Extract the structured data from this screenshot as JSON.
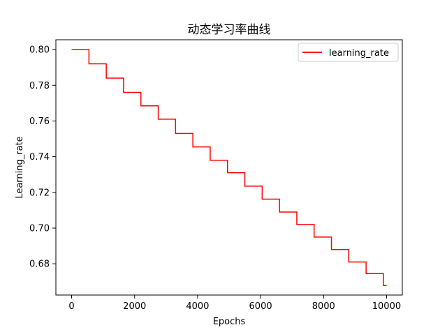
{
  "chart_data": {
    "type": "line",
    "title": "动态学习率曲线",
    "xlabel": "Epochs",
    "ylabel": "Learning_rate",
    "xlim": [
      -500,
      10500
    ],
    "ylim": [
      0.6625,
      0.8055
    ],
    "x_ticks": [
      0,
      2000,
      4000,
      6000,
      8000,
      10000
    ],
    "x_tick_labels": [
      "0",
      "2000",
      "4000",
      "6000",
      "8000",
      "10000"
    ],
    "y_ticks": [
      0.68,
      0.7,
      0.72,
      0.74,
      0.76,
      0.78,
      0.8
    ],
    "y_tick_labels": [
      "0.68",
      "0.70",
      "0.72",
      "0.74",
      "0.76",
      "0.78",
      "0.80"
    ],
    "grid": false,
    "legend_position": "top-right",
    "step_style": "post",
    "series": [
      {
        "name": "learning_rate",
        "color": "#ff0000",
        "x": [
          0,
          550,
          1100,
          1650,
          2200,
          2750,
          3300,
          3850,
          4400,
          4950,
          5500,
          6050,
          6600,
          7150,
          7700,
          8250,
          8800,
          9350,
          9900,
          10000
        ],
        "values": [
          0.8,
          0.792,
          0.784,
          0.776,
          0.7685,
          0.761,
          0.753,
          0.7455,
          0.738,
          0.731,
          0.7235,
          0.7162,
          0.709,
          0.702,
          0.695,
          0.688,
          0.681,
          0.6745,
          0.6678,
          0.6678
        ]
      }
    ]
  }
}
